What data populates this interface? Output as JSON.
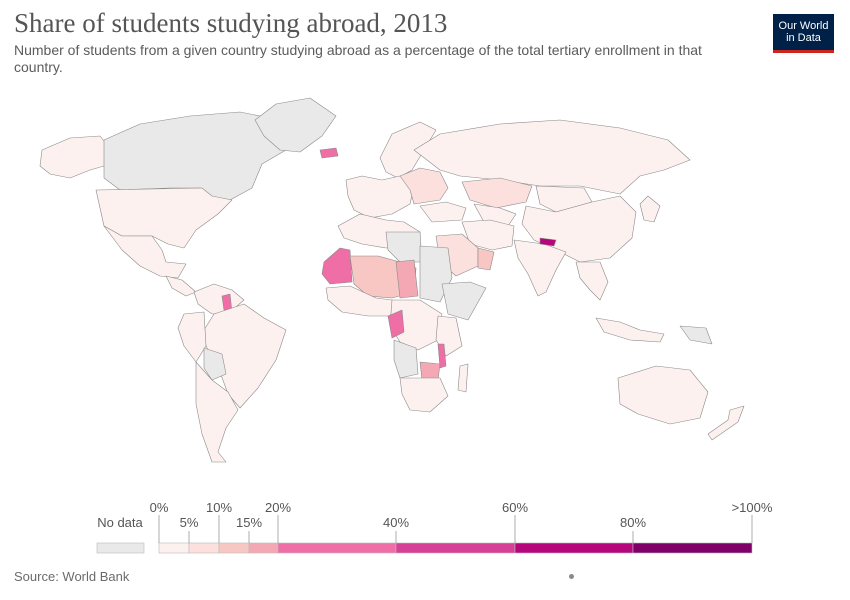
{
  "title": "Share of students studying abroad, 2013",
  "subtitle": "Number of students from a given country studying abroad as a percentage of the total tertiary enrollment in that country.",
  "logo": {
    "line1": "Our World",
    "line2": "in Data"
  },
  "source": "Source: World Bank",
  "colors": {
    "no_data": "#e9e9e9",
    "bins": [
      "#fdf1ef",
      "#fbe0dd",
      "#f8c7c3",
      "#f4a8b3",
      "#ef6ea6",
      "#d83f96",
      "#b5077b",
      "#7f0069"
    ]
  },
  "legend": {
    "no_data_label": "No data",
    "top_labels": [
      "0%",
      "10%",
      "20%",
      "60%",
      ">100%"
    ],
    "bottom_labels": [
      "5%",
      "15%",
      "40%",
      "80%"
    ]
  },
  "chart_data": {
    "type": "map",
    "variable": "Share of students studying abroad (%)",
    "year": 2013,
    "bins": [
      0,
      5,
      10,
      15,
      20,
      40,
      60,
      80,
      100
    ],
    "countries": [
      {
        "name": "United States",
        "bin": 0
      },
      {
        "name": "Canada",
        "bin": -1
      },
      {
        "name": "Mexico",
        "bin": 0
      },
      {
        "name": "Brazil",
        "bin": 0
      },
      {
        "name": "Argentina",
        "bin": 0
      },
      {
        "name": "Bolivia",
        "bin": -1
      },
      {
        "name": "Guyana",
        "bin": 4
      },
      {
        "name": "Russia",
        "bin": 0
      },
      {
        "name": "China",
        "bin": 0
      },
      {
        "name": "India",
        "bin": 0
      },
      {
        "name": "Nepal",
        "bin": 6
      },
      {
        "name": "Kazakhstan",
        "bin": 1
      },
      {
        "name": "Saudi Arabia",
        "bin": 1
      },
      {
        "name": "Oman",
        "bin": 2
      },
      {
        "name": "Mauritania",
        "bin": 4
      },
      {
        "name": "Niger",
        "bin": 3
      },
      {
        "name": "Chad",
        "bin": 2
      },
      {
        "name": "Republic of the Congo",
        "bin": 4
      },
      {
        "name": "Malawi",
        "bin": 4
      },
      {
        "name": "Zimbabwe",
        "bin": 3
      },
      {
        "name": "Australia",
        "bin": 0
      },
      {
        "name": "Greenland",
        "bin": -1
      },
      {
        "name": "Libya",
        "bin": -1
      },
      {
        "name": "Sudan",
        "bin": -1
      },
      {
        "name": "Somalia",
        "bin": -1
      },
      {
        "name": "Angola",
        "bin": -1
      },
      {
        "name": "Iceland",
        "bin": 4
      },
      {
        "name": "Papua New Guinea",
        "bin": -1
      }
    ]
  }
}
